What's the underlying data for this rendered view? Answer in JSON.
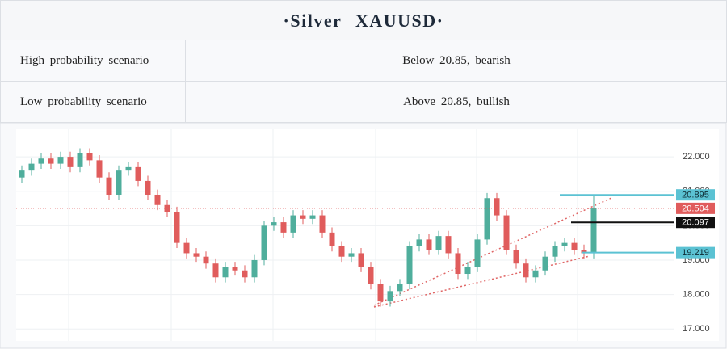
{
  "header": {
    "title": "·Silver XAUUSD·"
  },
  "table": {
    "rows": [
      [
        "High probability scenario",
        "Below 20.85, bearish"
      ],
      [
        "Low probability scenario",
        "Above 20.85, bullish"
      ]
    ]
  },
  "chart_data": {
    "type": "candlestick",
    "open": [
      21.4,
      21.6,
      21.8,
      21.95,
      21.8,
      22.0,
      21.7,
      22.1,
      21.9,
      21.4,
      20.9,
      21.6,
      21.7,
      21.3,
      20.9,
      20.6,
      20.4,
      19.5,
      19.2,
      19.1,
      18.9,
      18.5,
      18.8,
      18.7,
      18.5,
      19.0,
      20.0,
      20.1,
      19.8,
      20.3,
      20.2,
      20.3,
      19.8,
      19.4,
      19.1,
      19.2,
      18.8,
      18.3,
      17.8,
      18.1,
      18.3,
      19.4,
      19.6,
      19.3,
      19.7,
      19.2,
      18.6,
      18.8,
      19.6,
      20.8,
      20.3,
      19.3,
      18.9,
      18.5,
      18.7,
      19.1,
      19.4,
      19.5,
      19.3,
      19.2
    ],
    "high": [
      21.75,
      21.95,
      22.1,
      22.1,
      22.15,
      22.15,
      22.25,
      22.25,
      22.05,
      21.55,
      21.75,
      21.85,
      21.85,
      21.45,
      21.05,
      20.75,
      20.55,
      19.65,
      19.35,
      19.25,
      19.05,
      18.95,
      18.95,
      18.85,
      19.15,
      20.15,
      20.25,
      20.25,
      20.45,
      20.45,
      20.45,
      20.45,
      19.95,
      19.55,
      19.35,
      19.35,
      18.95,
      18.45,
      18.25,
      18.45,
      19.55,
      19.75,
      19.75,
      19.85,
      19.85,
      19.35,
      18.95,
      19.75,
      20.95,
      20.95,
      20.45,
      19.45,
      19.05,
      18.85,
      19.25,
      19.55,
      19.65,
      19.65,
      19.45,
      20.9
    ],
    "low": [
      21.25,
      21.45,
      21.65,
      21.65,
      21.65,
      21.55,
      21.55,
      21.75,
      21.25,
      20.75,
      20.75,
      21.45,
      21.15,
      20.75,
      20.45,
      20.25,
      19.35,
      19.05,
      18.95,
      18.75,
      18.35,
      18.35,
      18.55,
      18.35,
      18.35,
      18.85,
      19.85,
      19.65,
      19.65,
      20.05,
      20.05,
      19.65,
      19.25,
      18.95,
      18.95,
      18.65,
      18.15,
      17.65,
      17.65,
      17.95,
      18.15,
      19.25,
      19.15,
      19.15,
      19.05,
      18.45,
      18.45,
      18.65,
      19.45,
      20.15,
      19.15,
      18.75,
      18.35,
      18.35,
      18.55,
      18.95,
      19.25,
      19.15,
      19.05,
      19.05
    ],
    "close": [
      21.6,
      21.8,
      21.95,
      21.8,
      22.0,
      21.7,
      22.1,
      21.9,
      21.4,
      20.9,
      21.6,
      21.7,
      21.3,
      20.9,
      20.6,
      20.4,
      19.5,
      19.2,
      19.1,
      18.9,
      18.5,
      18.8,
      18.7,
      18.5,
      19.0,
      20.0,
      20.1,
      19.8,
      20.3,
      20.2,
      20.3,
      19.8,
      19.4,
      19.1,
      19.2,
      18.8,
      18.3,
      17.8,
      18.1,
      18.3,
      19.4,
      19.6,
      19.3,
      19.7,
      19.2,
      18.6,
      18.8,
      19.6,
      20.8,
      20.3,
      19.3,
      18.9,
      18.5,
      18.7,
      19.1,
      19.4,
      19.5,
      19.3,
      19.2,
      20.5
    ],
    "ylim": [
      16.7,
      22.8
    ],
    "yticks": [
      {
        "value": 17,
        "label": "17.000"
      },
      {
        "value": 18,
        "label": "18.000"
      },
      {
        "value": 19,
        "label": "19.000"
      },
      {
        "value": 20,
        "label": "20.000"
      },
      {
        "value": 21,
        "label": "21.000"
      },
      {
        "value": 22,
        "label": "22.000"
      }
    ],
    "price_lines": [
      {
        "value": 20.895,
        "label": "20.895",
        "color": "#5bc2d3"
      },
      {
        "value": 20.504,
        "label": "20.504",
        "color": "#e05c5c"
      },
      {
        "value": 20.097,
        "label": "20.097",
        "color": "#111111"
      },
      {
        "value": 19.219,
        "label": "19.219",
        "color": "#5bc2d3"
      }
    ],
    "colors": {
      "up": "#4fae9c",
      "down": "#e05c5c"
    }
  }
}
